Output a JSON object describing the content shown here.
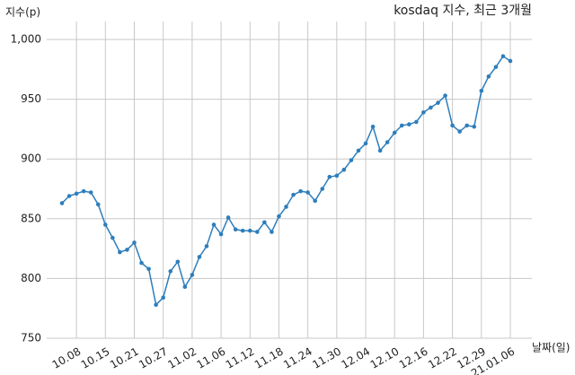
{
  "chart_data": {
    "type": "line",
    "title": "kosdaq 지수, 최근 3개월",
    "ylabel": "지수(p)",
    "xlabel": "날짜(일)",
    "color": "#2e7ebc",
    "grid": true,
    "categories": [
      null,
      null,
      "10.08",
      null,
      null,
      null,
      "10.15",
      null,
      null,
      null,
      "10.21",
      null,
      null,
      null,
      "10.27",
      null,
      null,
      null,
      "11.02",
      null,
      null,
      null,
      "11.06",
      null,
      null,
      null,
      "11.12",
      null,
      null,
      null,
      "11.18",
      null,
      null,
      null,
      "11.24",
      null,
      null,
      null,
      "11.30",
      null,
      null,
      null,
      "12.04",
      null,
      null,
      null,
      "12.10",
      null,
      null,
      null,
      "12.16",
      null,
      null,
      null,
      "12.22",
      null,
      null,
      null,
      "12.29",
      null,
      null,
      null,
      "21.01.06"
    ],
    "values": [
      863,
      869,
      871,
      873,
      872,
      862,
      845,
      834,
      822,
      824,
      830,
      813,
      808,
      778,
      784,
      806,
      814,
      793,
      803,
      818,
      827,
      845,
      837,
      851,
      841,
      840,
      840,
      839,
      847,
      839,
      852,
      860,
      870,
      873,
      872,
      865,
      875,
      885,
      886,
      891,
      899,
      907,
      913,
      927,
      907,
      914,
      922,
      928,
      929,
      931,
      939,
      943,
      947,
      953,
      928,
      923,
      928,
      927,
      957,
      969,
      977,
      986,
      982
    ],
    "ylim": [
      750,
      1015
    ],
    "yticks": [
      750,
      800,
      850,
      900,
      950,
      {
        "value": 1000,
        "label": "1,000"
      }
    ]
  }
}
